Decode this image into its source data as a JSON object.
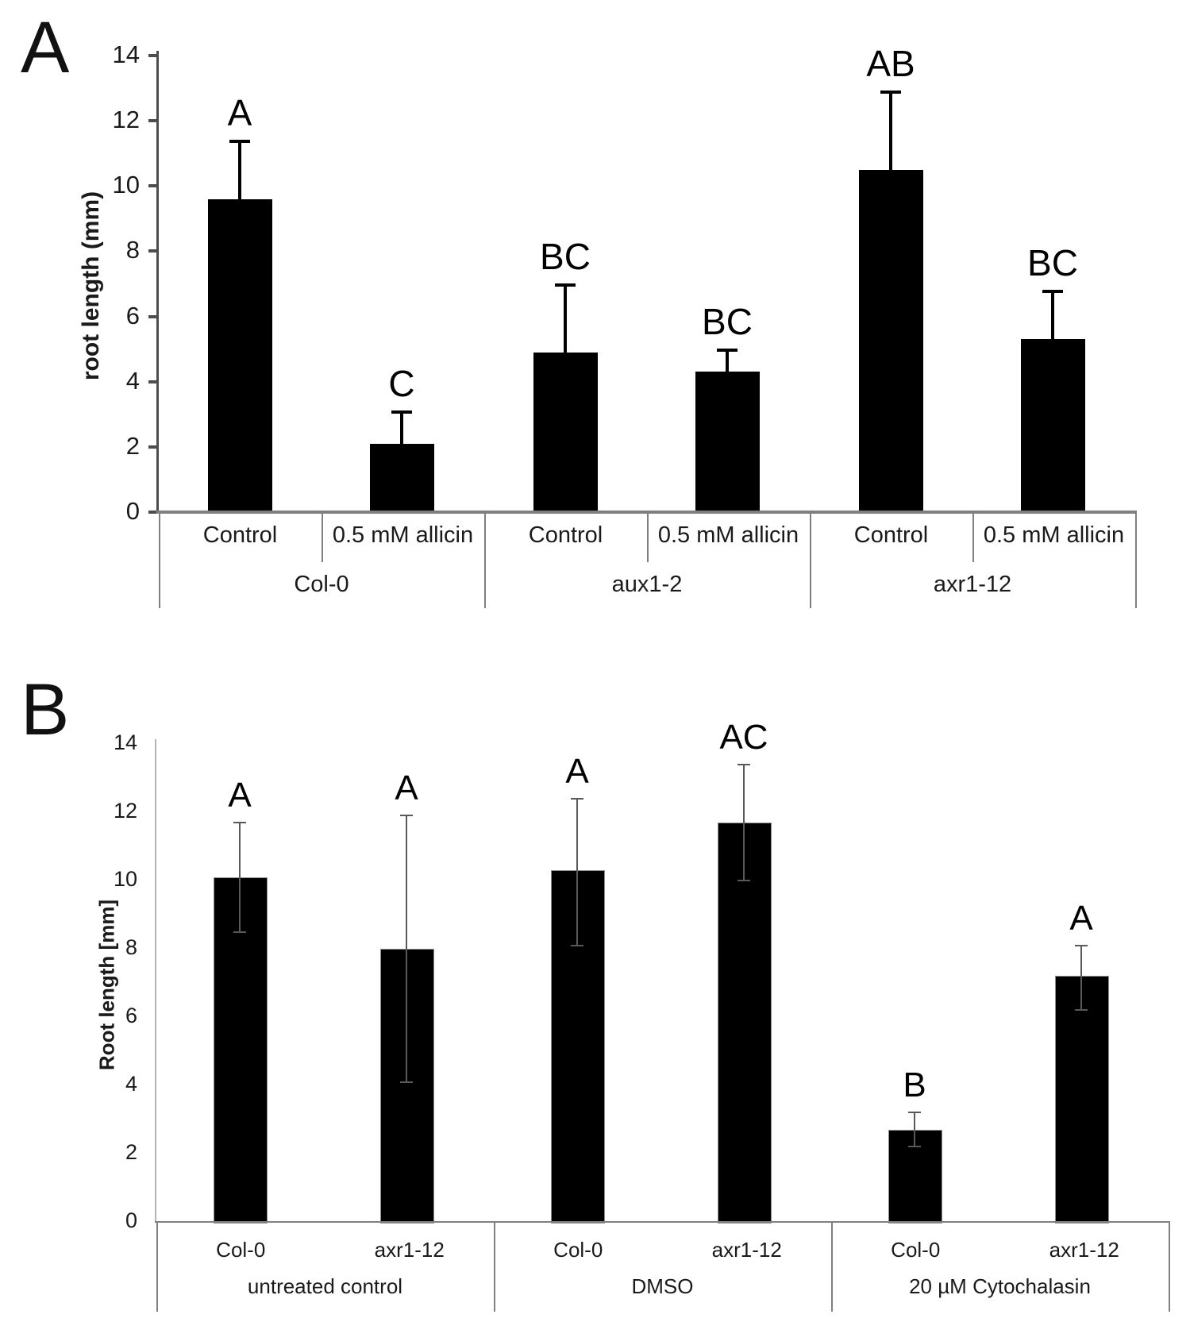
{
  "figure_title": "",
  "chart_data": [
    {
      "type": "bar",
      "panel_label": "A",
      "ylabel": "root length (mm)",
      "ylim": [
        0,
        14
      ],
      "yticks": [
        0,
        2,
        4,
        6,
        8,
        10,
        12,
        14
      ],
      "grid": false,
      "legend": "none",
      "bar_color": "#000000",
      "error_color": "#000000",
      "error_direction": "up-only",
      "groups": [
        {
          "label": "Col-0",
          "bars": [
            {
              "treatment": "Control",
              "value": 9.6,
              "error_up": 1.8,
              "letter": "A"
            },
            {
              "treatment": "0.5 mM allicin",
              "value": 2.1,
              "error_up": 1.0,
              "letter": "C"
            }
          ]
        },
        {
          "label": "aux1-2",
          "bars": [
            {
              "treatment": "Control",
              "value": 4.9,
              "error_up": 2.1,
              "letter": "BC"
            },
            {
              "treatment": "0.5 mM allicin",
              "value": 4.3,
              "error_up": 0.7,
              "letter": "BC"
            }
          ]
        },
        {
          "label": "axr1-12",
          "bars": [
            {
              "treatment": "Control",
              "value": 10.5,
              "error_up": 2.4,
              "letter": "AB"
            },
            {
              "treatment": "0.5 mM allicin",
              "value": 5.3,
              "error_up": 1.5,
              "letter": "BC"
            }
          ]
        }
      ]
    },
    {
      "type": "bar",
      "panel_label": "B",
      "ylabel": "Root length [mm]",
      "ylim": [
        0,
        14
      ],
      "yticks": [
        0,
        2,
        4,
        6,
        8,
        10,
        12,
        14
      ],
      "grid": false,
      "legend": "none",
      "bar_color": "#000000",
      "error_color": "#595959",
      "error_direction": "both",
      "groups": [
        {
          "label": "untreated control",
          "bars": [
            {
              "treatment": "Col-0",
              "value": 10.1,
              "error_up": 1.6,
              "error_down": 1.6,
              "letter": "A"
            },
            {
              "treatment": "axr1-12",
              "value": 8.0,
              "error_up": 3.9,
              "error_down": 3.9,
              "letter": "A"
            }
          ]
        },
        {
          "label": "DMSO",
          "bars": [
            {
              "treatment": "Col-0",
              "value": 10.3,
              "error_up": 2.1,
              "error_down": 2.2,
              "letter": "A"
            },
            {
              "treatment": "axr1-12",
              "value": 11.7,
              "error_up": 1.7,
              "error_down": 1.7,
              "letter": "AC"
            }
          ]
        },
        {
          "label": "20 µM Cytochalasin",
          "bars": [
            {
              "treatment": "Col-0",
              "value": 2.7,
              "error_up": 0.5,
              "error_down": 0.5,
              "letter": "B"
            },
            {
              "treatment": "axr1-12",
              "value": 7.2,
              "error_up": 0.9,
              "error_down": 1.0,
              "letter": "A"
            }
          ]
        }
      ]
    }
  ]
}
